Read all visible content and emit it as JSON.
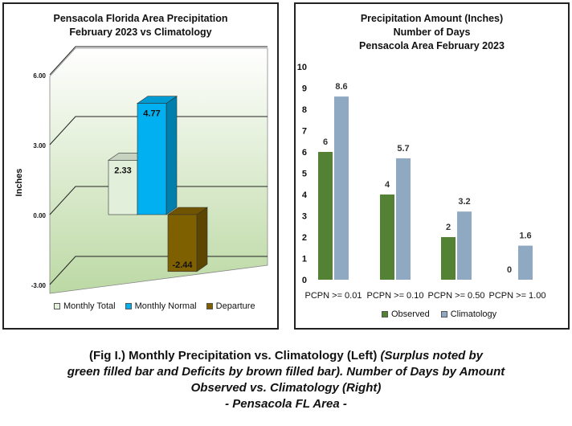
{
  "left_chart": {
    "title_line1": "Pensacola Florida Area Precipitation",
    "title_line2": "February 2023 vs Climatology",
    "ylabel": "Inches",
    "yticks": [
      "6.00",
      "3.00",
      "0.00",
      "-3.00"
    ],
    "legend": [
      "Monthly Total",
      "Monthly Normal",
      "Departure"
    ],
    "colors": {
      "total": "#e2efda",
      "normal": "#00b0f0",
      "departure": "#7f6000"
    }
  },
  "right_chart": {
    "title_line1": "Precipitation Amount (Inches)",
    "title_line2": "Number of Days",
    "title_line3": "Pensacola Area February 2023",
    "yticks": [
      "10",
      "9",
      "8",
      "7",
      "6",
      "5",
      "4",
      "3",
      "2",
      "1",
      "0"
    ],
    "legend": [
      "Observed",
      "Climatology"
    ],
    "colors": {
      "observed": "#548235",
      "climatology": "#8ea9c1"
    }
  },
  "chart_data": [
    {
      "type": "bar",
      "title": "Pensacola Florida Area Precipitation February 2023 vs Climatology",
      "ylabel": "Inches",
      "ylim": [
        -3,
        7.5
      ],
      "categories": [
        "Monthly Total",
        "Monthly Normal",
        "Departure"
      ],
      "values": [
        2.33,
        4.77,
        -2.44
      ],
      "value_labels": [
        "2.33",
        "4.77",
        "-2.44"
      ],
      "grid": true,
      "legend_position": "bottom"
    },
    {
      "type": "bar",
      "title": "Precipitation Amount (Inches) Number of Days Pensacola Area February 2023",
      "categories": [
        "PCPN >= 0.01",
        "PCPN >= 0.10",
        "PCPN >= 0.50",
        "PCPN >= 1.00"
      ],
      "ylim": [
        0,
        10
      ],
      "series": [
        {
          "name": "Observed",
          "values": [
            6,
            4,
            2,
            0
          ],
          "labels": [
            "6",
            "4",
            "2",
            "0"
          ]
        },
        {
          "name": "Climatology",
          "values": [
            8.6,
            5.7,
            3.2,
            1.6
          ],
          "labels": [
            "8.6",
            "5.7",
            "3.2",
            "1.6"
          ]
        }
      ],
      "grid": false,
      "legend_position": "bottom"
    }
  ],
  "caption": {
    "line1_normal": "(Fig I.) Monthly Precipitation vs. Climatology (Left) ",
    "line1_italic": "(Surplus noted by",
    "line2": "green filled bar and Deficits by brown filled bar). Number of Days by Amount",
    "line3": "Observed vs. Climatology (Right)",
    "line4": "- Pensacola FL Area -"
  }
}
